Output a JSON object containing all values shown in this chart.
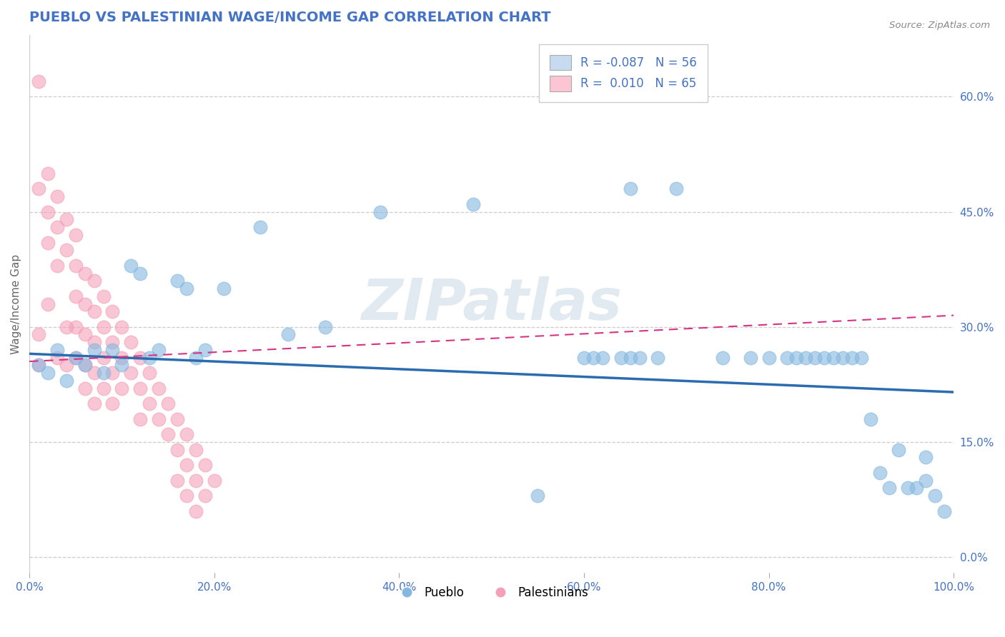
{
  "title": "PUEBLO VS PALESTINIAN WAGE/INCOME GAP CORRELATION CHART",
  "source": "Source: ZipAtlas.com",
  "ylabel": "Wage/Income Gap",
  "xlim": [
    0.0,
    1.0
  ],
  "ylim": [
    -0.02,
    0.68
  ],
  "xticks": [
    0.0,
    0.2,
    0.4,
    0.6,
    0.8,
    1.0
  ],
  "xtick_labels": [
    "0.0%",
    "20.0%",
    "40.0%",
    "60.0%",
    "80.0%",
    "100.0%"
  ],
  "yticks": [
    0.0,
    0.15,
    0.3,
    0.45,
    0.6
  ],
  "ytick_labels": [
    "0.0%",
    "15.0%",
    "30.0%",
    "45.0%",
    "60.0%"
  ],
  "blue_color": "#85b8e0",
  "pink_color": "#f4a0b8",
  "blue_fill": "#c6dbef",
  "pink_fill": "#fcc5d4",
  "trend_blue": "#2b6cb0",
  "trend_pink": "#d63384",
  "R_blue": -0.087,
  "N_blue": 56,
  "R_pink": 0.01,
  "N_pink": 65,
  "watermark": "ZIPatlas",
  "background_color": "#ffffff",
  "title_color": "#4472c4",
  "axis_color": "#4472c4",
  "pueblo_x": [
    0.01,
    0.02,
    0.03,
    0.04,
    0.05,
    0.06,
    0.07,
    0.08,
    0.09,
    0.1,
    0.11,
    0.12,
    0.13,
    0.14,
    0.16,
    0.17,
    0.18,
    0.19,
    0.21,
    0.25,
    0.28,
    0.32,
    0.38,
    0.48,
    0.55,
    0.6,
    0.61,
    0.62,
    0.64,
    0.65,
    0.65,
    0.66,
    0.68,
    0.7,
    0.75,
    0.78,
    0.8,
    0.82,
    0.83,
    0.84,
    0.85,
    0.86,
    0.87,
    0.88,
    0.89,
    0.9,
    0.91,
    0.92,
    0.93,
    0.94,
    0.95,
    0.96,
    0.97,
    0.97,
    0.98,
    0.99
  ],
  "pueblo_y": [
    0.25,
    0.24,
    0.27,
    0.23,
    0.26,
    0.25,
    0.27,
    0.24,
    0.27,
    0.25,
    0.38,
    0.37,
    0.26,
    0.27,
    0.36,
    0.35,
    0.26,
    0.27,
    0.35,
    0.43,
    0.29,
    0.3,
    0.45,
    0.46,
    0.08,
    0.26,
    0.26,
    0.26,
    0.26,
    0.48,
    0.26,
    0.26,
    0.26,
    0.48,
    0.26,
    0.26,
    0.26,
    0.26,
    0.26,
    0.26,
    0.26,
    0.26,
    0.26,
    0.26,
    0.26,
    0.26,
    0.18,
    0.11,
    0.09,
    0.14,
    0.09,
    0.09,
    0.13,
    0.1,
    0.08,
    0.06
  ],
  "pales_x": [
    0.01,
    0.01,
    0.01,
    0.01,
    0.02,
    0.02,
    0.02,
    0.02,
    0.03,
    0.03,
    0.03,
    0.03,
    0.04,
    0.04,
    0.04,
    0.04,
    0.05,
    0.05,
    0.05,
    0.05,
    0.05,
    0.06,
    0.06,
    0.06,
    0.06,
    0.06,
    0.07,
    0.07,
    0.07,
    0.07,
    0.07,
    0.08,
    0.08,
    0.08,
    0.08,
    0.09,
    0.09,
    0.09,
    0.09,
    0.1,
    0.1,
    0.1,
    0.11,
    0.11,
    0.12,
    0.12,
    0.12,
    0.13,
    0.13,
    0.14,
    0.14,
    0.15,
    0.15,
    0.16,
    0.16,
    0.16,
    0.17,
    0.17,
    0.17,
    0.18,
    0.18,
    0.18,
    0.19,
    0.19,
    0.2
  ],
  "pales_y": [
    0.62,
    0.48,
    0.29,
    0.25,
    0.5,
    0.45,
    0.41,
    0.33,
    0.47,
    0.43,
    0.38,
    0.26,
    0.44,
    0.4,
    0.3,
    0.25,
    0.42,
    0.38,
    0.34,
    0.3,
    0.26,
    0.37,
    0.33,
    0.29,
    0.25,
    0.22,
    0.36,
    0.32,
    0.28,
    0.24,
    0.2,
    0.34,
    0.3,
    0.26,
    0.22,
    0.32,
    0.28,
    0.24,
    0.2,
    0.3,
    0.26,
    0.22,
    0.28,
    0.24,
    0.26,
    0.22,
    0.18,
    0.24,
    0.2,
    0.22,
    0.18,
    0.2,
    0.16,
    0.18,
    0.14,
    0.1,
    0.16,
    0.12,
    0.08,
    0.14,
    0.1,
    0.06,
    0.12,
    0.08,
    0.1
  ]
}
